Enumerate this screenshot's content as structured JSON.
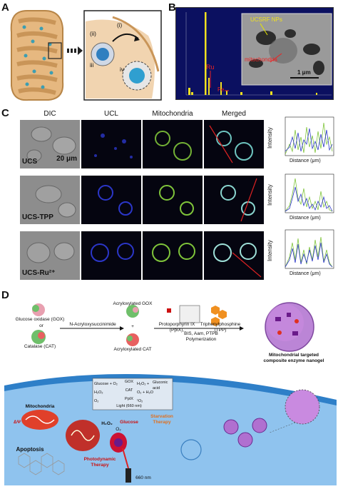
{
  "panels": {
    "a": "A",
    "b": "B",
    "c": "C",
    "d": "D"
  },
  "panelA": {
    "labels": [
      "(i)",
      "(ii)",
      "iii",
      "iv"
    ]
  },
  "panelB": {
    "ucsrf": "UCSRF NPs",
    "mito": "mitochondria",
    "ru": "Ru",
    "fe": "Fe",
    "scale": "1 μm"
  },
  "panelC": {
    "columns": [
      "DIC",
      "UCL",
      "Mitochondria",
      "Merged"
    ],
    "rows": [
      {
        "label": "UCS",
        "scale": "20 μm"
      },
      {
        "label": "UCS-TPP",
        "scale": ""
      },
      {
        "label": "UCS-Ru²⁺",
        "scale": ""
      }
    ],
    "graph": {
      "ylabel": "Intensity",
      "xlabel": "Distance (μm)",
      "plots": [
        {
          "yticks": [
            "0",
            "100",
            "200",
            "300",
            "400",
            "500",
            "600",
            "700",
            "800"
          ],
          "xticks": [
            "0",
            "5",
            "10",
            "15",
            "20",
            "25",
            "30",
            "35",
            "40",
            "45",
            "50"
          ]
        },
        {
          "yticks": [
            "0",
            "50",
            "100",
            "150",
            "200",
            "250",
            "300"
          ],
          "xticks": [
            "0",
            "10",
            "20",
            "30",
            "40",
            "50",
            "60"
          ]
        },
        {
          "yticks": [
            "0",
            "50",
            "100",
            "150",
            "200",
            "250",
            "300"
          ],
          "xticks": [
            "0",
            "5",
            "10",
            "15",
            "20",
            "25",
            "30",
            "35",
            "40",
            "45"
          ]
        }
      ]
    }
  },
  "panelD": {
    "gox": "Glucose oxidase (GOX)",
    "or": "or",
    "cat": "Catalase (CAT)",
    "reagent": "N-Acryloxysuccinimide",
    "acr_gox": "Acryloxylated GOX",
    "plus": "+",
    "acr_cat": "Acryloxylated CAT",
    "pp": "Protoporphyrin IX (PpIX),",
    "tpp": "Triphenylphosphine (TPP)",
    "bis": "BIS, Aam, PTPB",
    "poly": "Polymerization",
    "nanogel1": "Mitochondrial targeted",
    "nanogel2": "composite enzyme nanogel",
    "reactions": {
      "r1_left": "Glucose + O₂",
      "r1_enz": "GOX",
      "r1_right": "H₂O₂ +",
      "r1_prod": "Gluconic acid",
      "r2_left": "H₂O₂",
      "r2_enz": "CAT",
      "r2_right": "O₂ + H₂O",
      "r3_left": "O₂",
      "r3_enz": "PpIX",
      "r3_right": "¹O₂",
      "r3_light": "Light (660 nm)"
    },
    "mitochondria": "Mitochondria",
    "dpsi": "ΔΨ",
    "apoptosis": "Apoptosis",
    "pdt1": "Photodynamic",
    "pdt2": "Therapy",
    "starv1": "Starvation",
    "starv2": "Therapy",
    "glucose": "Glucose",
    "o2": "O₂",
    "h2o2": "H₂O₂",
    "laser": "660 nm"
  },
  "colors": {
    "ucl": "#2b36c8",
    "mito": "#7fc43a",
    "bg_dark": "#050510"
  }
}
